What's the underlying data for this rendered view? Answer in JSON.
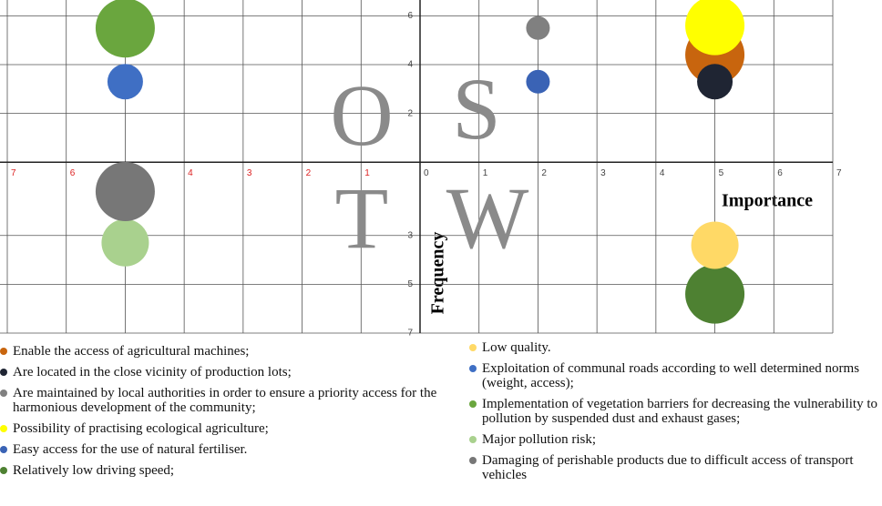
{
  "chart_data": {
    "type": "bubble",
    "x_label": "Importance",
    "y_label": "Frequency",
    "annotations": [
      "O",
      "S",
      "T",
      "W"
    ],
    "xlim": [
      -7,
      7
    ],
    "ylim": [
      -7,
      6.2
    ],
    "xticks": [
      {
        "value": -7,
        "label": "7"
      },
      {
        "value": -6,
        "label": "6"
      },
      {
        "value": -5,
        "label": "5"
      },
      {
        "value": -4,
        "label": "4"
      },
      {
        "value": -3,
        "label": "3"
      },
      {
        "value": -2,
        "label": "2"
      },
      {
        "value": -1,
        "label": "1"
      },
      0,
      1,
      2,
      3,
      4,
      5,
      6,
      7
    ],
    "yticks": [
      6,
      4,
      2,
      {
        "value": -3,
        "label": "3"
      },
      {
        "value": -5,
        "label": "5"
      },
      {
        "value": -7,
        "label": "7"
      }
    ],
    "grid": true,
    "series": [
      {
        "name": "Enable the access of agricultural machines;",
        "color": "#c8650e",
        "x": [
          5
        ],
        "y": [
          4.4
        ],
        "size": [
          5
        ]
      },
      {
        "name": "Are located in the close vicinity of production lots;",
        "color": "#1f2533",
        "x": [
          5
        ],
        "y": [
          3.3
        ],
        "size": [
          3
        ]
      },
      {
        "name": "Are maintained by local authorities in order to ensure a priority access  for the harmonious development of the community;",
        "color": "#808080",
        "x": [
          2
        ],
        "y": [
          5.5
        ],
        "size": [
          2
        ]
      },
      {
        "name": "Possibility of practising ecological agriculture;",
        "color": "#ffff00",
        "x": [
          5
        ],
        "y": [
          5.6
        ],
        "size": [
          5
        ]
      },
      {
        "name": "Easy access for the use of natural fertiliser.",
        "color": "#3a63b5",
        "x": [
          2
        ],
        "y": [
          3.3
        ],
        "size": [
          2
        ]
      },
      {
        "name": "Relatively low driving speed;",
        "color": "#4e8132",
        "x": [
          5
        ],
        "y": [
          -5.4
        ],
        "size": [
          5
        ]
      },
      {
        "name": "Low quality.",
        "color": "#ffd966",
        "x": [
          5
        ],
        "y": [
          -3.4
        ],
        "size": [
          4
        ]
      },
      {
        "name": "Exploitation of communal roads according to well determined norms (weight, access);",
        "color": "#3f6fc4",
        "x": [
          -5
        ],
        "y": [
          3.3
        ],
        "size": [
          3
        ]
      },
      {
        "name": "Implementation of vegetation barriers for decreasing the vulnerability to pollution by suspended dust and exhaust gases;",
        "color": "#6aa63e",
        "x": [
          -5
        ],
        "y": [
          5.5
        ],
        "size": [
          5
        ]
      },
      {
        "name": "Major pollution risk;",
        "color": "#a9d18e",
        "x": [
          -5
        ],
        "y": [
          -3.3
        ],
        "size": [
          4
        ]
      },
      {
        "name": "Damaging of perishable products due to difficult access of transport vehicles",
        "color": "#777777",
        "x": [
          -5
        ],
        "y": [
          -1.2
        ],
        "size": [
          5
        ]
      }
    ]
  }
}
